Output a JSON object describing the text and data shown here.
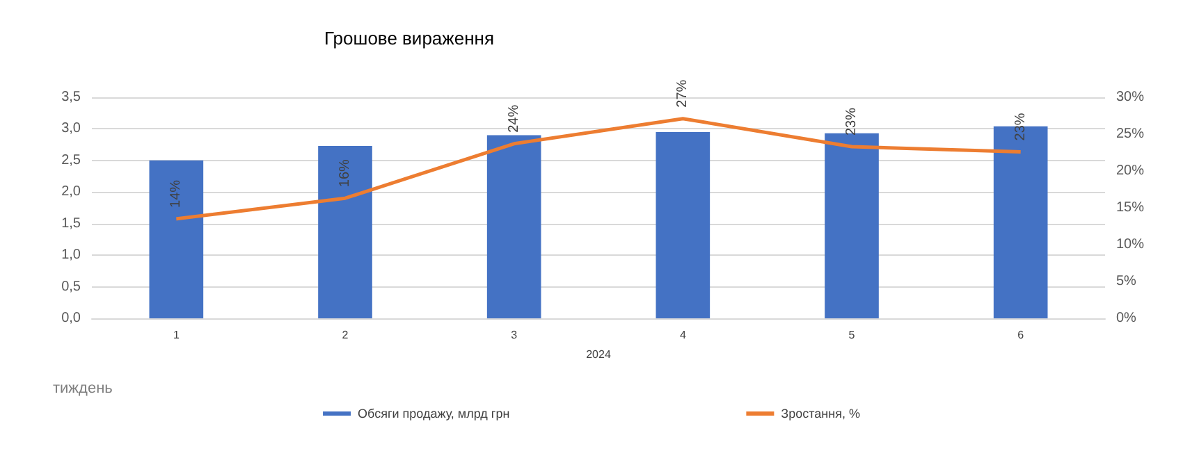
{
  "chart_data": {
    "type": "bar",
    "title": "Грошове вираження",
    "categories": [
      "1",
      "2",
      "3",
      "4",
      "5",
      "6"
    ],
    "xlabel": "2024",
    "annotations": [
      "тиждень"
    ],
    "series": [
      {
        "name": "Обсяги продажу, млрд грн",
        "color": "#4472c4",
        "values": [
          2.5,
          2.73,
          2.9,
          2.95,
          2.93,
          3.04
        ]
      },
      {
        "name": "Зростання, %",
        "type": "line",
        "axis": "y2",
        "color": "#ed7d31",
        "marker": "none",
        "values": [
          13.5,
          16.3,
          23.7,
          27.1,
          23.3,
          22.6
        ],
        "value_labels": [
          "14%",
          "16%",
          "24%",
          "27%",
          "23%",
          "23%"
        ]
      }
    ],
    "ylim": [
      0,
      3.5
    ],
    "yticks": [
      {
        "value": 0,
        "label": "0,0"
      },
      {
        "value": 0.5,
        "label": "0,5"
      },
      {
        "value": 1,
        "label": "1,0"
      },
      {
        "value": 1.5,
        "label": "1,5"
      },
      {
        "value": 2,
        "label": "2,0"
      },
      {
        "value": 2.5,
        "label": "2,5"
      },
      {
        "value": 3,
        "label": "3,0"
      },
      {
        "value": 3.5,
        "label": "3,5"
      }
    ],
    "y2lim": [
      0,
      30
    ],
    "y2ticks": [
      {
        "value": 0,
        "label": "0%"
      },
      {
        "value": 5,
        "label": "5%"
      },
      {
        "value": 10,
        "label": "10%"
      },
      {
        "value": 15,
        "label": "15%"
      },
      {
        "value": 20,
        "label": "20%"
      },
      {
        "value": 25,
        "label": "25%"
      },
      {
        "value": 30,
        "label": "30%"
      }
    ],
    "grid": "y",
    "legend": "bottom"
  }
}
